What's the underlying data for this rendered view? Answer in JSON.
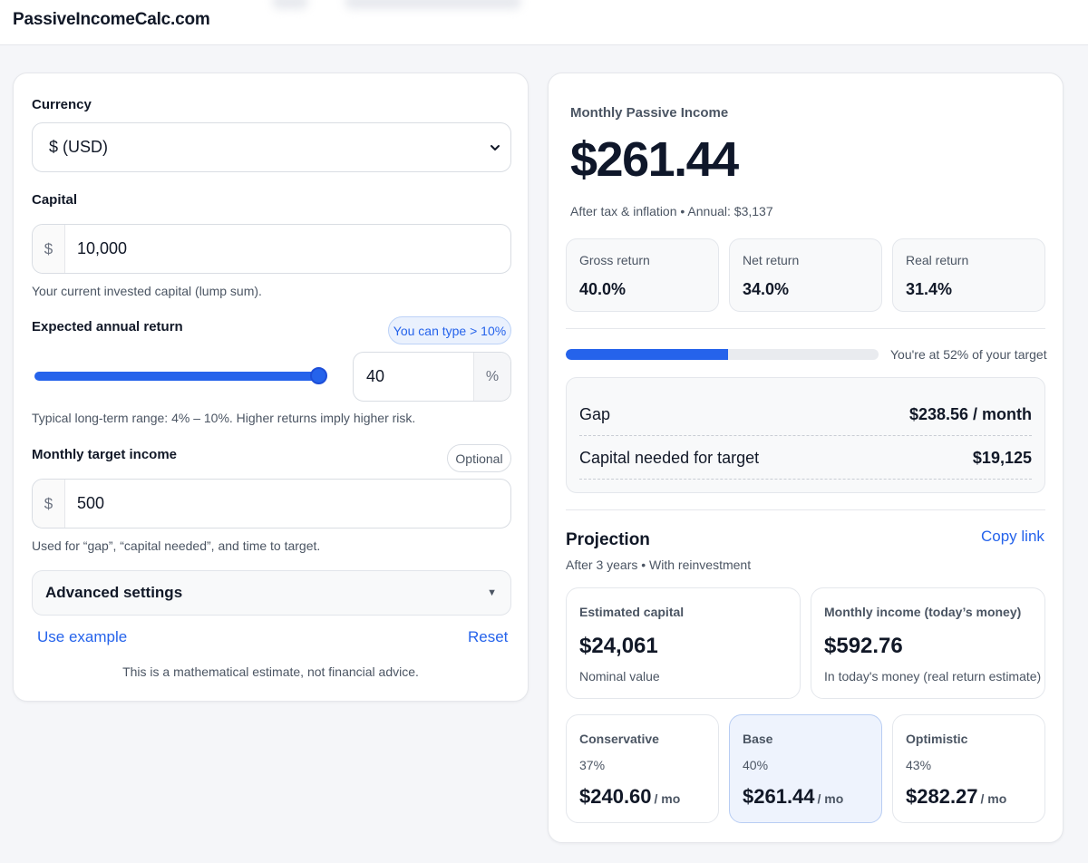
{
  "header": {
    "brand": "PassiveIncomeCalc.com"
  },
  "form": {
    "currency": {
      "label": "Currency",
      "selected": "$ (USD)"
    },
    "capital": {
      "label": "Capital",
      "prefix": "$",
      "value": "10,000",
      "hint": "Your current invested capital (lump sum)."
    },
    "annual_return": {
      "label": "Expected annual return",
      "badge": "You can type > 10%",
      "slider_fraction": 1.0,
      "value": "40",
      "suffix": "%",
      "hint": "Typical long-term range: 4% – 10%. Higher returns imply higher risk."
    },
    "target": {
      "label": "Monthly target income",
      "badge": "Optional",
      "prefix": "$",
      "value": "500",
      "hint": "Used for “gap”, “capital needed”, and time to target."
    },
    "advanced": {
      "label": "Advanced settings",
      "caret": "▼"
    },
    "use_example": "Use example",
    "reset": "Reset",
    "disclaimer": "This is a mathematical estimate, not financial advice."
  },
  "result": {
    "title": "Monthly Passive Income",
    "amount": "$261.44",
    "subtitle": "After tax & inflation • Annual: $3,137",
    "stats": [
      {
        "label": "Gross return",
        "value": "40.0%"
      },
      {
        "label": "Net return",
        "value": "34.0%"
      },
      {
        "label": "Real return",
        "value": "31.4%"
      }
    ],
    "progress": {
      "percent": 52,
      "label": "You're at 52% of your target"
    },
    "gap": {
      "label": "Gap",
      "value": "$238.56 / month"
    },
    "capital_needed": {
      "label": "Capital needed for target",
      "value": "$19,125"
    }
  },
  "projection": {
    "title": "Projection",
    "copy_link": "Copy link",
    "subtitle": "After 3 years • With reinvestment",
    "cards": [
      {
        "title": "Estimated capital",
        "value": "$24,061",
        "sub": "Nominal value"
      },
      {
        "title": "Monthly income (today’s money)",
        "value": "$592.76",
        "sub": "In today's money (real return estimate)"
      }
    ],
    "scenarios": [
      {
        "name": "Conservative",
        "rate": "37%",
        "value": "$240.60",
        "unit": "/ mo"
      },
      {
        "name": "Base",
        "rate": "40%",
        "value": "$261.44",
        "unit": "/ mo"
      },
      {
        "name": "Optimistic",
        "rate": "43%",
        "value": "$282.27",
        "unit": "/ mo"
      }
    ]
  },
  "colors": {
    "accent": "#2563eb",
    "background": "#f5f6f9",
    "card": "#ffffff"
  }
}
